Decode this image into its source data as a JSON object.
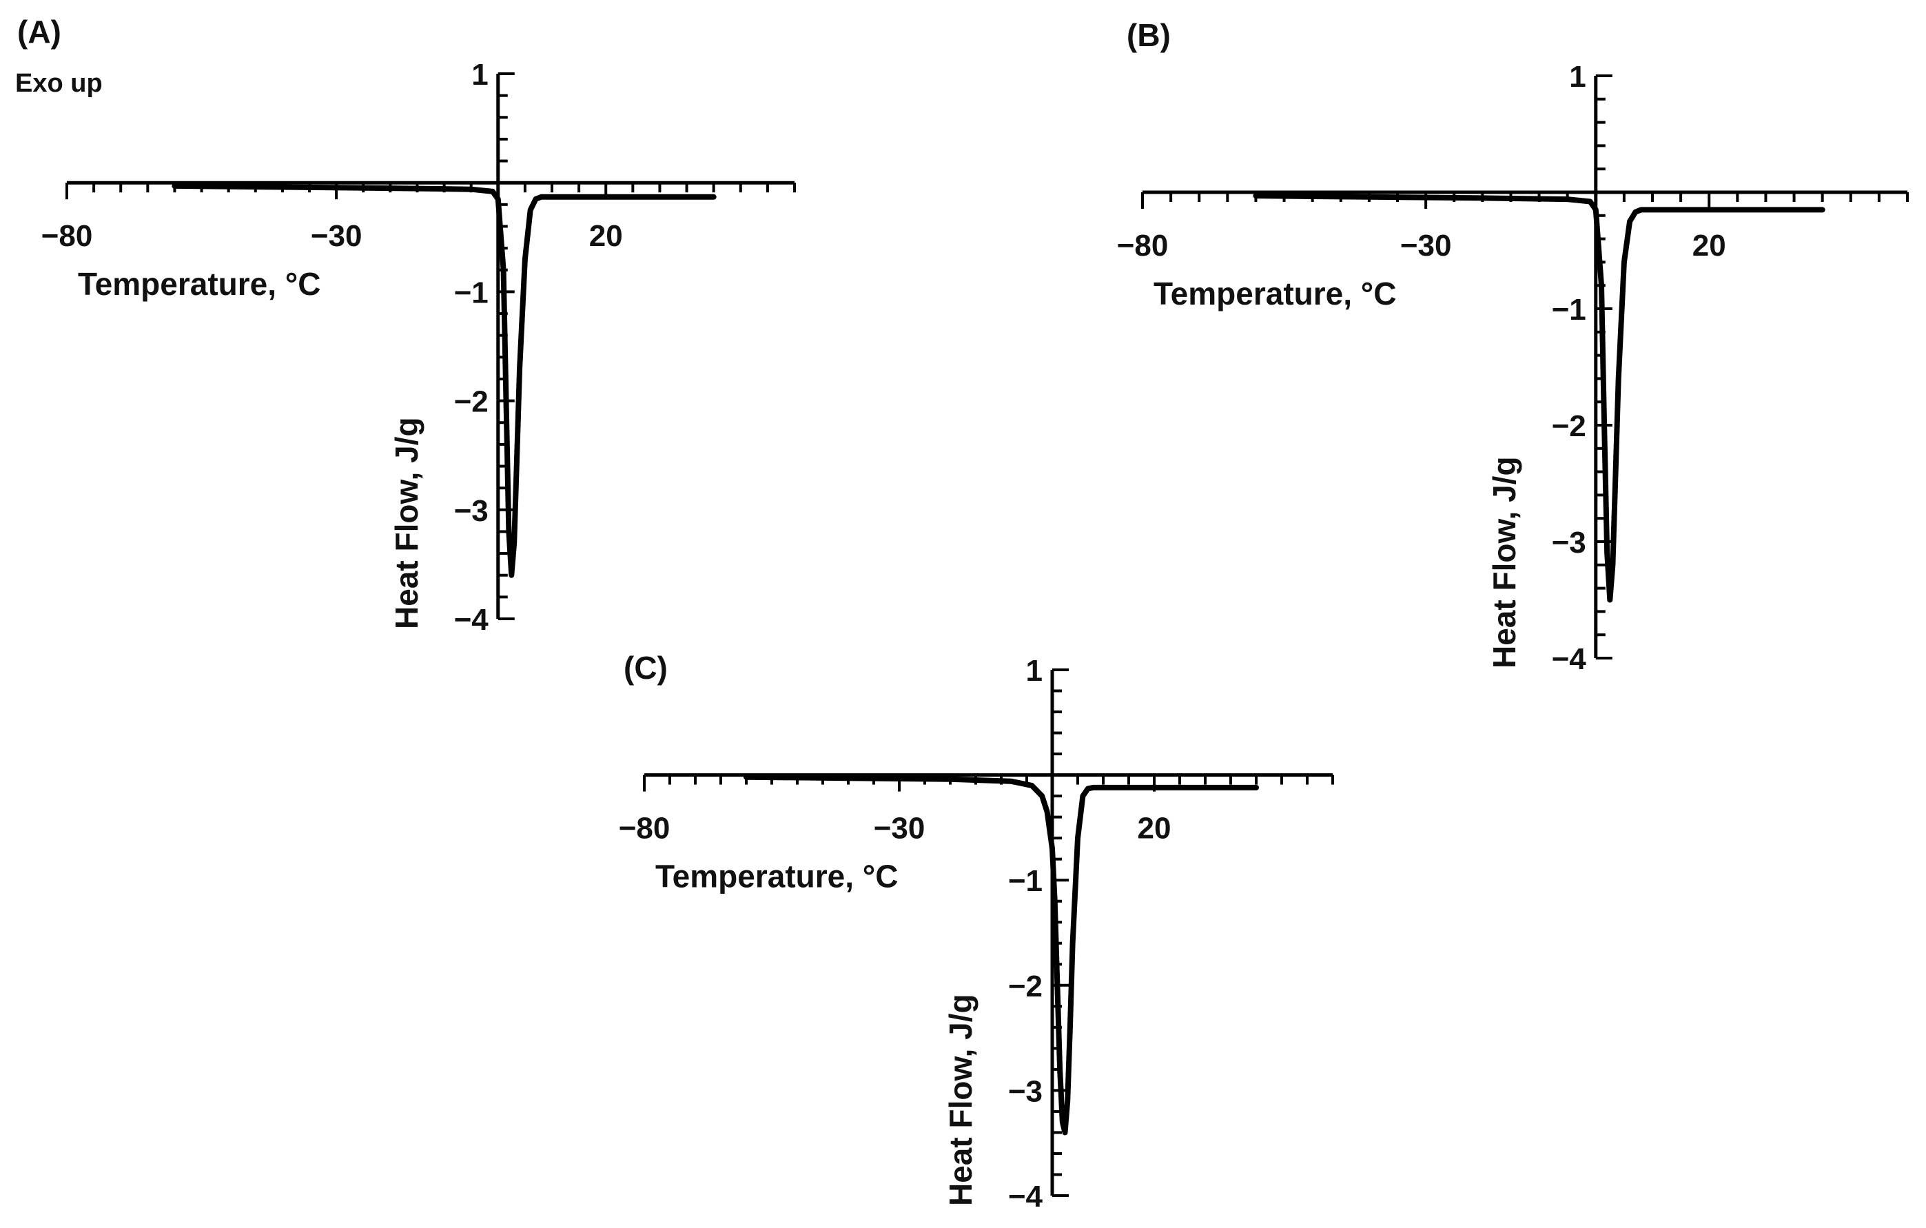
{
  "figure": {
    "note": "Exo up"
  },
  "chart_data": [
    {
      "type": "line",
      "panel": "(A)",
      "xlabel": "Temperature, °C",
      "ylabel": "Heat Flow, J/g",
      "xlim": [
        -80,
        55
      ],
      "ylim": [
        -4,
        1
      ],
      "xticks": [
        -80,
        -30,
        20
      ],
      "xtick_labels": [
        "−80",
        "−30",
        "20"
      ],
      "yticks": [
        1,
        -1,
        -2,
        -3,
        -4
      ],
      "ytick_labels": [
        "1",
        "−1",
        "−2",
        "−3",
        "−4"
      ],
      "x_minor_step": 5,
      "y_minor_step": 0.2,
      "grid": false,
      "legend": "none",
      "series": [
        {
          "x": [
            -60,
            -40,
            -20,
            -5,
            -1,
            0,
            1,
            1.5,
            2,
            2.5,
            3,
            3.5,
            4,
            5,
            6,
            7,
            8,
            12,
            20,
            30,
            40
          ],
          "y": [
            -0.03,
            -0.04,
            -0.05,
            -0.06,
            -0.08,
            -0.15,
            -0.8,
            -2.0,
            -3.2,
            -3.6,
            -3.3,
            -2.5,
            -1.7,
            -0.7,
            -0.25,
            -0.15,
            -0.13,
            -0.13,
            -0.13,
            -0.13,
            -0.13
          ]
        }
      ]
    },
    {
      "type": "line",
      "panel": "(B)",
      "xlabel": "Temperature, °C",
      "ylabel": "Heat Flow, J/g",
      "xlim": [
        -80,
        55
      ],
      "ylim": [
        -4,
        1
      ],
      "xticks": [
        -80,
        -30,
        20
      ],
      "xtick_labels": [
        "−80",
        "−30",
        "20"
      ],
      "yticks": [
        1,
        -1,
        -2,
        -3,
        -4
      ],
      "ytick_labels": [
        "1",
        "−1",
        "−2",
        "−3",
        "−4"
      ],
      "x_minor_step": 5,
      "y_minor_step": 0.2,
      "grid": false,
      "legend": "none",
      "series": [
        {
          "x": [
            -60,
            -40,
            -20,
            -5,
            -1,
            0,
            1,
            1.5,
            2,
            2.5,
            3,
            3.5,
            4,
            5,
            6,
            7,
            8,
            12,
            20,
            30,
            40
          ],
          "y": [
            -0.03,
            -0.04,
            -0.05,
            -0.06,
            -0.08,
            -0.15,
            -0.8,
            -2.0,
            -3.1,
            -3.5,
            -3.2,
            -2.4,
            -1.6,
            -0.6,
            -0.25,
            -0.17,
            -0.15,
            -0.15,
            -0.15,
            -0.15,
            -0.15
          ]
        }
      ]
    },
    {
      "type": "line",
      "panel": "(C)",
      "xlabel": "Temperature, °C",
      "ylabel": "Heat Flow, J/g",
      "xlim": [
        -80,
        55
      ],
      "ylim": [
        -4,
        1
      ],
      "xticks": [
        -80,
        -30,
        20
      ],
      "xtick_labels": [
        "−80",
        "−30",
        "20"
      ],
      "yticks": [
        1,
        -1,
        -2,
        -3,
        -4
      ],
      "ytick_labels": [
        "1",
        "−1",
        "−2",
        "−3",
        "−4"
      ],
      "x_minor_step": 5,
      "y_minor_step": 0.2,
      "grid": false,
      "legend": "none",
      "series": [
        {
          "x": [
            -60,
            -40,
            -20,
            -8,
            -4,
            -2,
            -1,
            0,
            0.5,
            1,
            1.5,
            2,
            2.5,
            3,
            3.5,
            4,
            5,
            6,
            7,
            8,
            12,
            20,
            30,
            40
          ],
          "y": [
            -0.02,
            -0.03,
            -0.04,
            -0.06,
            -0.1,
            -0.2,
            -0.35,
            -0.7,
            -1.2,
            -2.0,
            -2.8,
            -3.3,
            -3.4,
            -3.1,
            -2.4,
            -1.6,
            -0.6,
            -0.2,
            -0.13,
            -0.12,
            -0.12,
            -0.12,
            -0.12,
            -0.12
          ]
        }
      ]
    }
  ]
}
